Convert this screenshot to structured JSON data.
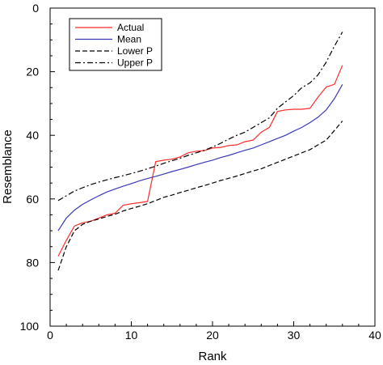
{
  "chart_data": {
    "type": "line",
    "xlabel": "Rank",
    "ylabel": "Resemblance",
    "xlim": [
      0,
      40
    ],
    "ylim": [
      0,
      100
    ],
    "y_inverted": true,
    "grid": false,
    "legend_position": "top-left",
    "x_ticks": [
      0,
      10,
      20,
      30,
      40
    ],
    "y_ticks": [
      0,
      20,
      40,
      60,
      80,
      100
    ],
    "series": [
      {
        "name": "Actual",
        "color": "#ff2a2a",
        "style": "solid",
        "x": [
          1,
          2,
          3,
          4,
          5,
          6,
          7,
          8,
          9,
          10,
          11,
          12,
          13,
          14,
          15,
          16,
          17,
          18,
          19,
          20,
          21,
          22,
          23,
          24,
          25,
          26,
          27,
          28,
          29,
          30,
          31,
          32,
          33,
          34,
          35,
          36
        ],
        "y": [
          78,
          73,
          68.5,
          67.5,
          67,
          66,
          65,
          64.5,
          62,
          61.5,
          61.2,
          60.8,
          48.3,
          47.8,
          47.5,
          46.8,
          45.5,
          45,
          44.8,
          44,
          43.8,
          43.2,
          43,
          42,
          41.5,
          39,
          37.5,
          32.5,
          32,
          31.8,
          31.8,
          31.5,
          28,
          24.8,
          24,
          18
        ]
      },
      {
        "name": "Mean",
        "color": "#3a3ab8",
        "style": "solid",
        "x": [
          1,
          2,
          3,
          4,
          5,
          6,
          7,
          8,
          9,
          10,
          11,
          12,
          13,
          14,
          15,
          16,
          17,
          18,
          19,
          20,
          21,
          22,
          23,
          24,
          25,
          26,
          27,
          28,
          29,
          30,
          31,
          32,
          33,
          34,
          35,
          36
        ],
        "y": [
          70,
          66,
          63.5,
          61.7,
          60.3,
          59,
          57.8,
          56.9,
          56,
          55.2,
          54.3,
          53.6,
          52.9,
          52.2,
          51.4,
          50.7,
          50,
          49.2,
          48.5,
          47.8,
          47,
          46.3,
          45.5,
          44.7,
          44,
          43,
          42,
          41,
          40,
          38.7,
          37.5,
          36,
          34.3,
          32,
          28.5,
          24
        ]
      },
      {
        "name": "Lower P",
        "color": "#000000",
        "style": "dashed",
        "x": [
          1,
          2,
          3,
          4,
          5,
          6,
          7,
          8,
          9,
          10,
          11,
          12,
          13,
          14,
          15,
          16,
          17,
          18,
          19,
          20,
          21,
          22,
          23,
          24,
          25,
          26,
          27,
          28,
          29,
          30,
          31,
          32,
          33,
          34,
          35,
          36
        ],
        "y": [
          82.5,
          75,
          70,
          68,
          67,
          66.3,
          65.5,
          64.8,
          63.8,
          63,
          62.3,
          61.5,
          60.5,
          59.5,
          58.8,
          58,
          57.3,
          56.5,
          55.8,
          55,
          54.2,
          53.5,
          52.8,
          52,
          51.2,
          50.5,
          49.5,
          48.5,
          47.5,
          46.5,
          45.5,
          44.5,
          43,
          41.5,
          38.5,
          35.5
        ]
      },
      {
        "name": "Upper P",
        "color": "#000000",
        "style": "dashdot",
        "x": [
          1,
          2,
          3,
          4,
          5,
          6,
          7,
          8,
          9,
          10,
          11,
          12,
          13,
          14,
          15,
          16,
          17,
          18,
          19,
          20,
          21,
          22,
          23,
          24,
          25,
          26,
          27,
          28,
          29,
          30,
          31,
          32,
          33,
          34,
          35,
          36
        ],
        "y": [
          60.5,
          59,
          57.5,
          56.5,
          55.5,
          54.7,
          54,
          53.3,
          52.7,
          52,
          51.3,
          50.5,
          49.7,
          48.8,
          48,
          47.2,
          46.3,
          45.5,
          44.7,
          43.7,
          42.5,
          41.2,
          40,
          39,
          37.5,
          36,
          34.5,
          31.5,
          29.5,
          27.5,
          25,
          23.5,
          21,
          17,
          12,
          7.5
        ]
      }
    ]
  }
}
